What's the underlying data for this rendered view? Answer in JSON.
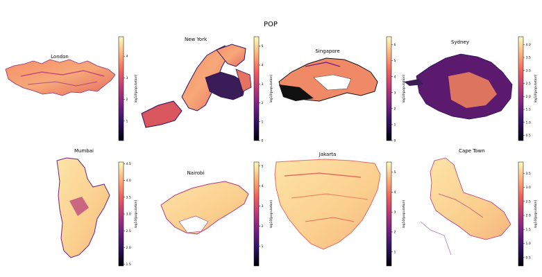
{
  "suptitle": "POP",
  "colormap": [
    "#000004",
    "#2c115f",
    "#721f81",
    "#b73779",
    "#f1605d",
    "#feb078",
    "#fcfdbf"
  ],
  "chart_data": {
    "type": "heatmap",
    "title": "POP",
    "panels": [
      {
        "title": "London",
        "cbar_label": "log10(population)",
        "clim": [
          0.1,
          4.9
        ],
        "ticks": [
          1,
          2,
          3,
          4
        ],
        "tick_labels": [
          "1",
          "2",
          "3",
          "4"
        ]
      },
      {
        "title": "New York",
        "cbar_label": "log10(population)",
        "clim": [
          0,
          5.5
        ],
        "ticks": [
          0,
          1,
          2,
          3,
          4,
          5
        ],
        "tick_labels": [
          "0",
          "1",
          "2",
          "3",
          "4",
          "5"
        ]
      },
      {
        "title": "Singapore",
        "cbar_label": "log10(population)",
        "clim": [
          0,
          6.5
        ],
        "ticks": [
          0,
          1,
          2,
          3,
          4,
          5,
          6
        ],
        "tick_labels": [
          "0",
          "1",
          "2",
          "3",
          "4",
          "5",
          "6"
        ]
      },
      {
        "title": "Sydney",
        "cbar_label": "log10(population)",
        "clim": [
          0.3,
          4.3
        ],
        "ticks": [
          0.5,
          1.0,
          1.5,
          2.0,
          2.5,
          3.0,
          3.5,
          4.0
        ],
        "tick_labels": [
          "0.5",
          "1.0",
          "1.5",
          "2.0",
          "2.5",
          "3.0",
          "3.5",
          "4.0"
        ]
      },
      {
        "title": "Mumbai",
        "cbar_label": "log10(population)",
        "clim": [
          1.45,
          4.55
        ],
        "ticks": [
          1.5,
          2.0,
          2.5,
          3.0,
          3.5,
          4.0,
          4.5
        ],
        "tick_labels": [
          "1.5",
          "2.0",
          "2.5",
          "3.0",
          "3.5",
          "4.0",
          "4.5"
        ]
      },
      {
        "title": "Nairobi",
        "cbar_label": "log10(population)",
        "clim": [
          0,
          5.2
        ],
        "ticks": [
          1,
          2,
          3,
          4,
          5
        ],
        "tick_labels": [
          "1",
          "2",
          "3",
          "4",
          "5"
        ]
      },
      {
        "title": "Jakarta",
        "cbar_label": "log10(population)",
        "clim": [
          0.3,
          5.5
        ],
        "ticks": [
          1,
          2,
          3,
          4,
          5
        ],
        "tick_labels": [
          "1",
          "2",
          "3",
          "4",
          "5"
        ]
      },
      {
        "title": "Cape Town",
        "cbar_label": "log10(population)",
        "clim": [
          0.2,
          3.9
        ],
        "ticks": [
          0.5,
          1.0,
          1.5,
          2.0,
          2.5,
          3.0,
          3.5
        ],
        "tick_labels": [
          "0.5",
          "1.0",
          "1.5",
          "2.0",
          "2.5",
          "3.0",
          "3.5"
        ]
      }
    ]
  }
}
